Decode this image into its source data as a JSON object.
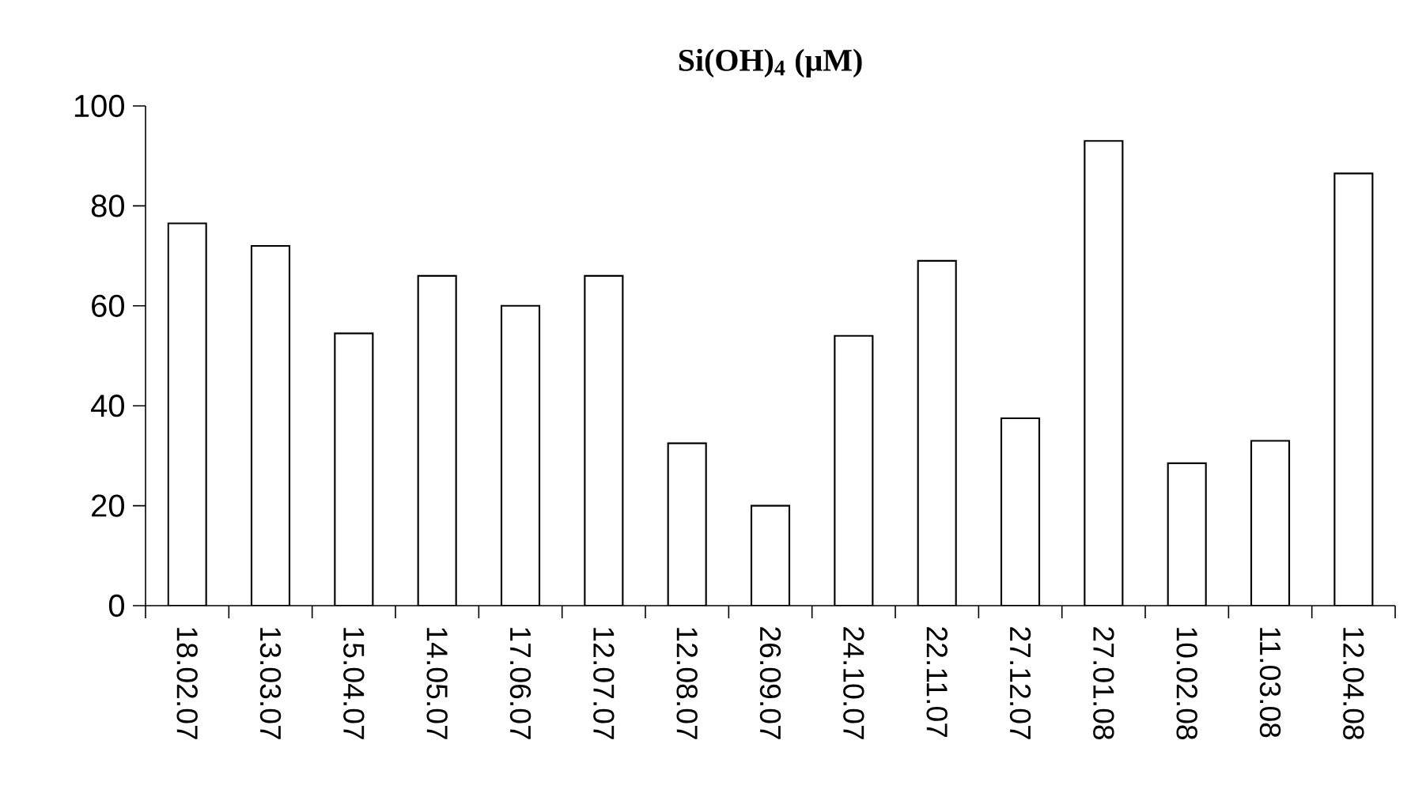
{
  "chart_data": {
    "type": "bar",
    "title": "Si(OH)$_{4}$ (μM)",
    "categories": [
      "18.02.07",
      "13.03.07",
      "15.04.07",
      "14.05.07",
      "17.06.07",
      "12.07.07",
      "12.08.07",
      "26.09.07",
      "24.10.07",
      "22.11.07",
      "27.12.07",
      "27.01.08",
      "10.02.08",
      "11.03.08",
      "12.04.08"
    ],
    "values": [
      76.5,
      72,
      54.5,
      66,
      60,
      66,
      32.5,
      20,
      54,
      69,
      37.5,
      93,
      28.5,
      33,
      86.5
    ],
    "color": "#ffffff",
    "ylim": [
      0,
      100
    ],
    "yticks": [
      0,
      20,
      40,
      60,
      80,
      100
    ]
  }
}
